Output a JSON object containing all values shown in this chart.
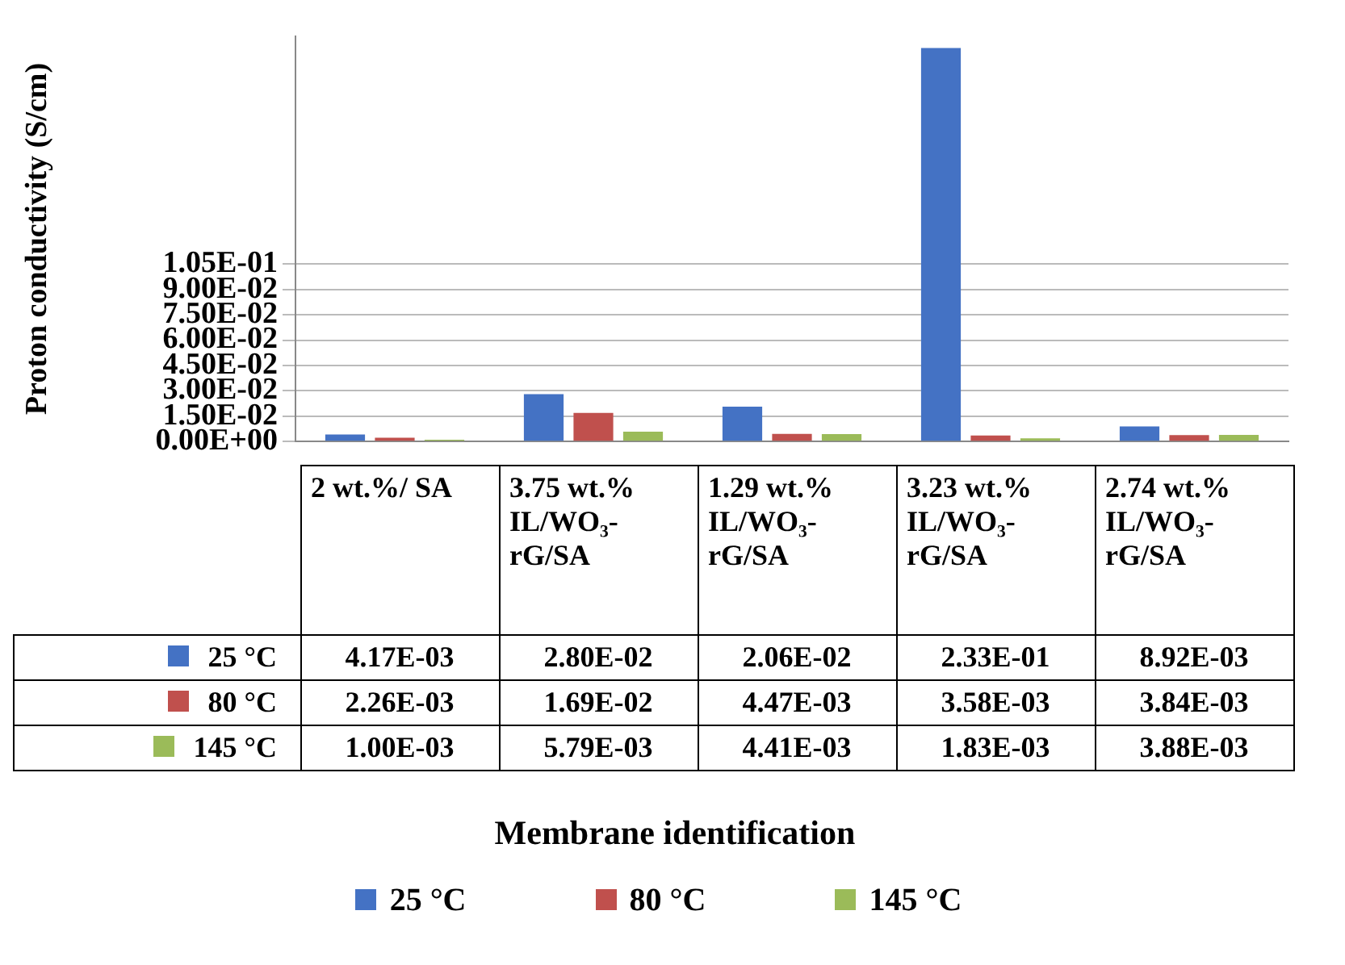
{
  "chart_data": {
    "type": "bar",
    "ylabel": "Proton conductivity (S/cm)",
    "annotations": [
      "Membrane identification"
    ],
    "categories": [
      "2 wt.%/ SA",
      "3.75 wt.% IL/WO₃-rG/SA",
      "1.29 wt.% IL/WO₃-rG/SA",
      "3.23 wt.% IL/WO₃-rG/SA",
      "2.74 wt.% IL/WO₃-rG/SA"
    ],
    "series": [
      {
        "name": "25 °C",
        "color": "#4472c4",
        "values": [
          0.00417,
          0.028,
          0.0206,
          0.233,
          0.00892
        ],
        "value_labels": [
          "4.17E-03",
          "2.80E-02",
          "2.06E-02",
          "2.33E-01",
          "8.92E-03"
        ]
      },
      {
        "name": "80 °C",
        "color": "#c0504d",
        "values": [
          0.00226,
          0.0169,
          0.00447,
          0.00358,
          0.00384
        ],
        "value_labels": [
          "2.26E-03",
          "1.69E-02",
          "4.47E-03",
          "3.58E-03",
          "3.84E-03"
        ]
      },
      {
        "name": "145 °C",
        "color": "#9bbb59",
        "values": [
          0.001,
          0.00579,
          0.00441,
          0.00183,
          0.00388
        ],
        "value_labels": [
          "1.00E-03",
          "5.79E-03",
          "4.41E-03",
          "1.83E-03",
          "3.88E-03"
        ]
      }
    ],
    "ylim": [
      0,
      0.24
    ],
    "yticks": [
      {
        "value": 0,
        "label": "0.00E+00"
      },
      {
        "value": 0.015,
        "label": "1.50E-02"
      },
      {
        "value": 0.03,
        "label": "3.00E-02"
      },
      {
        "value": 0.045,
        "label": "4.50E-02"
      },
      {
        "value": 0.06,
        "label": "6.00E-02"
      },
      {
        "value": 0.075,
        "label": "7.50E-02"
      },
      {
        "value": 0.09,
        "label": "9.00E-02"
      },
      {
        "value": 0.105,
        "label": "1.05E-01"
      }
    ],
    "grid": "y",
    "legend": "bottom"
  }
}
